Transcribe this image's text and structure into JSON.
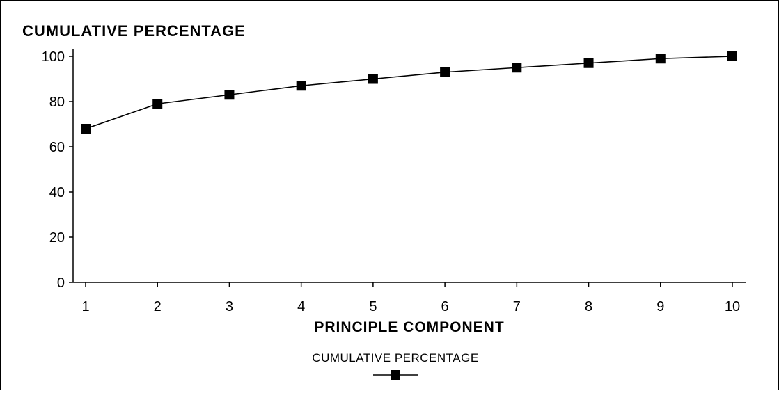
{
  "chart_data": {
    "type": "line",
    "title": "CUMULATIVE PERCENTAGE",
    "xlabel": "PRINCIPLE COMPONENT",
    "ylabel": "",
    "x": [
      1,
      2,
      3,
      4,
      5,
      6,
      7,
      8,
      9,
      10
    ],
    "series": [
      {
        "name": "CUMULATIVE PERCENTAGE",
        "values": [
          68,
          79,
          83,
          87,
          90,
          93,
          95,
          97,
          99,
          100
        ],
        "marker": "square",
        "color": "#000000"
      }
    ],
    "ylim": [
      0,
      100
    ],
    "yticks": [
      0,
      20,
      40,
      60,
      80,
      100
    ],
    "xticks": [
      1,
      2,
      3,
      4,
      5,
      6,
      7,
      8,
      9,
      10
    ],
    "grid": false,
    "legend_position": "bottom-center"
  }
}
